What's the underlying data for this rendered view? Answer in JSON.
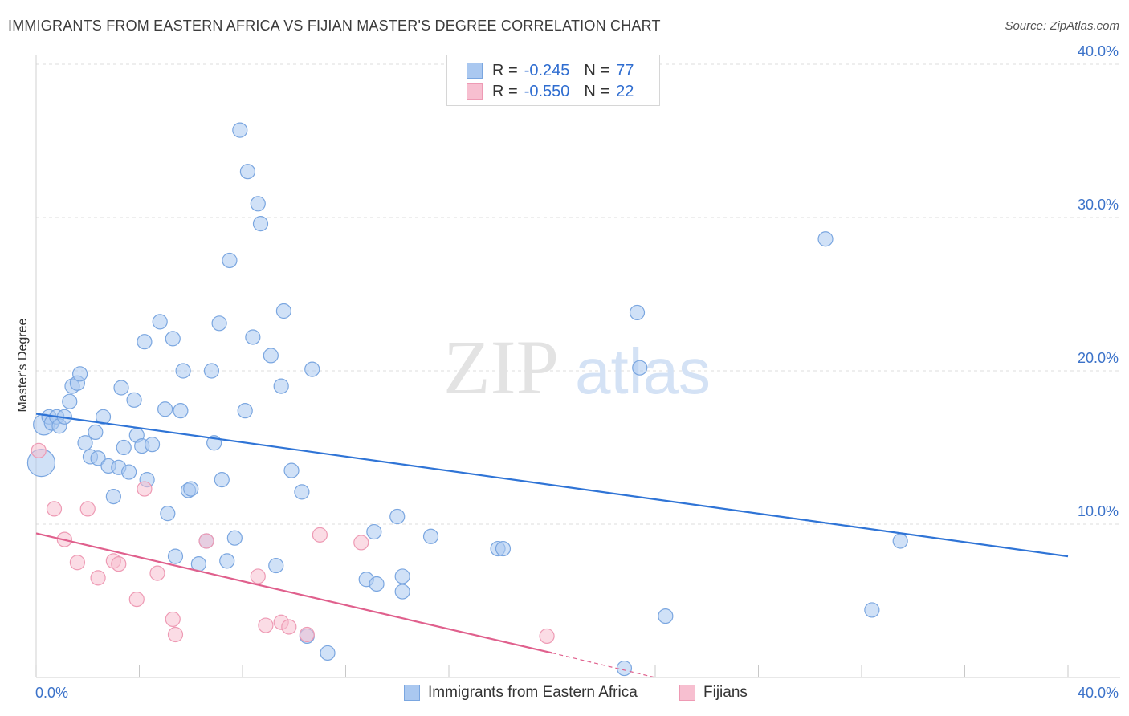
{
  "header": {
    "title": "IMMIGRANTS FROM EASTERN AFRICA VS FIJIAN MASTER'S DEGREE CORRELATION CHART",
    "source": "Source: ZipAtlas.com"
  },
  "watermark": {
    "zip": "ZIP",
    "atlas": "atlas"
  },
  "legend_top": {
    "rows": [
      {
        "r_label": "R =",
        "r_value": "-0.245",
        "n_label": "N =",
        "n_value": "77"
      },
      {
        "r_label": "R =",
        "r_value": "-0.550",
        "n_label": "N =",
        "n_value": "22"
      }
    ]
  },
  "legend_bottom": {
    "items": [
      {
        "label": "Immigrants from Eastern Africa"
      },
      {
        "label": "Fijians"
      }
    ]
  },
  "colors": {
    "blue_fill": "#aac8f0",
    "blue_stroke": "#7aa6e0",
    "blue_line": "#2f74d6",
    "pink_fill": "#f7bfd0",
    "pink_stroke": "#ee9ab4",
    "pink_line": "#e0608d",
    "tick_label": "#3b72c9"
  },
  "chart_data": {
    "type": "scatter",
    "title": "IMMIGRANTS FROM EASTERN AFRICA VS FIJIAN MASTER'S DEGREE CORRELATION CHART",
    "xlabel": "",
    "ylabel": "Master's Degree",
    "xlim": [
      0,
      40
    ],
    "ylim": [
      0,
      40
    ],
    "x_tick_labels": [
      "0.0%",
      "40.0%"
    ],
    "y_ticks": [
      10,
      20,
      30,
      40
    ],
    "y_tick_labels": [
      "10.0%",
      "20.0%",
      "30.0%",
      "40.0%"
    ],
    "grid": true,
    "series": [
      {
        "name": "Immigrants from Eastern Africa",
        "R": -0.245,
        "N": 77,
        "trend": {
          "x": [
            0,
            40
          ],
          "y": [
            17.2,
            7.9
          ]
        },
        "points": [
          {
            "x": 0.2,
            "y": 14.0,
            "big": 2
          },
          {
            "x": 0.3,
            "y": 16.5,
            "big": 1
          },
          {
            "x": 0.5,
            "y": 17.0
          },
          {
            "x": 0.6,
            "y": 16.6
          },
          {
            "x": 0.8,
            "y": 17.0
          },
          {
            "x": 0.9,
            "y": 16.4
          },
          {
            "x": 1.1,
            "y": 17.0
          },
          {
            "x": 1.3,
            "y": 18.0
          },
          {
            "x": 1.4,
            "y": 19.0
          },
          {
            "x": 1.6,
            "y": 19.2
          },
          {
            "x": 1.7,
            "y": 19.8
          },
          {
            "x": 1.9,
            "y": 15.3
          },
          {
            "x": 2.1,
            "y": 14.4
          },
          {
            "x": 2.3,
            "y": 16.0
          },
          {
            "x": 2.4,
            "y": 14.3
          },
          {
            "x": 2.6,
            "y": 17.0
          },
          {
            "x": 2.8,
            "y": 13.8
          },
          {
            "x": 3.0,
            "y": 11.8
          },
          {
            "x": 3.2,
            "y": 13.7
          },
          {
            "x": 3.3,
            "y": 18.9
          },
          {
            "x": 3.4,
            "y": 15.0
          },
          {
            "x": 3.6,
            "y": 13.4
          },
          {
            "x": 3.8,
            "y": 18.1
          },
          {
            "x": 3.9,
            "y": 15.8
          },
          {
            "x": 4.1,
            "y": 15.1
          },
          {
            "x": 4.2,
            "y": 21.9
          },
          {
            "x": 4.3,
            "y": 12.9
          },
          {
            "x": 4.5,
            "y": 15.2
          },
          {
            "x": 4.8,
            "y": 23.2
          },
          {
            "x": 5.0,
            "y": 17.5
          },
          {
            "x": 5.1,
            "y": 10.7
          },
          {
            "x": 5.3,
            "y": 22.1
          },
          {
            "x": 5.4,
            "y": 7.9
          },
          {
            "x": 5.6,
            "y": 17.4
          },
          {
            "x": 5.7,
            "y": 20.0
          },
          {
            "x": 5.9,
            "y": 12.2
          },
          {
            "x": 6.0,
            "y": 12.3
          },
          {
            "x": 6.3,
            "y": 7.4
          },
          {
            "x": 6.6,
            "y": 8.9
          },
          {
            "x": 6.8,
            "y": 20.0
          },
          {
            "x": 6.9,
            "y": 15.3
          },
          {
            "x": 7.1,
            "y": 23.1
          },
          {
            "x": 7.2,
            "y": 12.9
          },
          {
            "x": 7.4,
            "y": 7.6
          },
          {
            "x": 7.5,
            "y": 27.2
          },
          {
            "x": 7.7,
            "y": 9.1
          },
          {
            "x": 7.9,
            "y": 35.7
          },
          {
            "x": 8.1,
            "y": 17.4
          },
          {
            "x": 8.2,
            "y": 33.0
          },
          {
            "x": 8.4,
            "y": 22.2
          },
          {
            "x": 8.6,
            "y": 30.9
          },
          {
            "x": 8.7,
            "y": 29.6
          },
          {
            "x": 9.1,
            "y": 21.0
          },
          {
            "x": 9.3,
            "y": 7.3
          },
          {
            "x": 9.5,
            "y": 19.0
          },
          {
            "x": 9.6,
            "y": 23.9
          },
          {
            "x": 9.9,
            "y": 13.5
          },
          {
            "x": 10.3,
            "y": 12.1
          },
          {
            "x": 10.5,
            "y": 2.7
          },
          {
            "x": 10.7,
            "y": 20.1
          },
          {
            "x": 11.3,
            "y": 1.6
          },
          {
            "x": 12.8,
            "y": 6.4
          },
          {
            "x": 13.1,
            "y": 9.5
          },
          {
            "x": 13.2,
            "y": 6.1
          },
          {
            "x": 14.0,
            "y": 10.5
          },
          {
            "x": 14.2,
            "y": 6.6
          },
          {
            "x": 14.2,
            "y": 5.6
          },
          {
            "x": 15.3,
            "y": 9.2
          },
          {
            "x": 17.9,
            "y": 8.4
          },
          {
            "x": 18.1,
            "y": 8.4
          },
          {
            "x": 22.8,
            "y": 0.6
          },
          {
            "x": 23.3,
            "y": 23.8
          },
          {
            "x": 23.4,
            "y": 20.2
          },
          {
            "x": 24.4,
            "y": 4.0
          },
          {
            "x": 30.6,
            "y": 28.6
          },
          {
            "x": 32.4,
            "y": 4.4
          },
          {
            "x": 33.5,
            "y": 8.9
          }
        ]
      },
      {
        "name": "Fijians",
        "R": -0.55,
        "N": 22,
        "trend": {
          "x": [
            0,
            20
          ],
          "y": [
            9.4,
            1.6
          ]
        },
        "trend_dashed_extension": {
          "x": [
            20,
            24
          ],
          "y": [
            1.6,
            0.0
          ]
        },
        "points": [
          {
            "x": 0.1,
            "y": 14.8
          },
          {
            "x": 0.7,
            "y": 11.0
          },
          {
            "x": 1.1,
            "y": 9.0
          },
          {
            "x": 1.6,
            "y": 7.5
          },
          {
            "x": 2.0,
            "y": 11.0
          },
          {
            "x": 2.4,
            "y": 6.5
          },
          {
            "x": 3.0,
            "y": 7.6
          },
          {
            "x": 3.2,
            "y": 7.4
          },
          {
            "x": 3.9,
            "y": 5.1
          },
          {
            "x": 4.2,
            "y": 12.3
          },
          {
            "x": 4.7,
            "y": 6.8
          },
          {
            "x": 5.3,
            "y": 3.8
          },
          {
            "x": 5.4,
            "y": 2.8
          },
          {
            "x": 6.6,
            "y": 8.9
          },
          {
            "x": 8.6,
            "y": 6.6
          },
          {
            "x": 8.9,
            "y": 3.4
          },
          {
            "x": 9.5,
            "y": 3.6
          },
          {
            "x": 9.8,
            "y": 3.3
          },
          {
            "x": 10.5,
            "y": 2.8
          },
          {
            "x": 11.0,
            "y": 9.3
          },
          {
            "x": 12.6,
            "y": 8.8
          },
          {
            "x": 19.8,
            "y": 2.7
          }
        ]
      }
    ]
  }
}
